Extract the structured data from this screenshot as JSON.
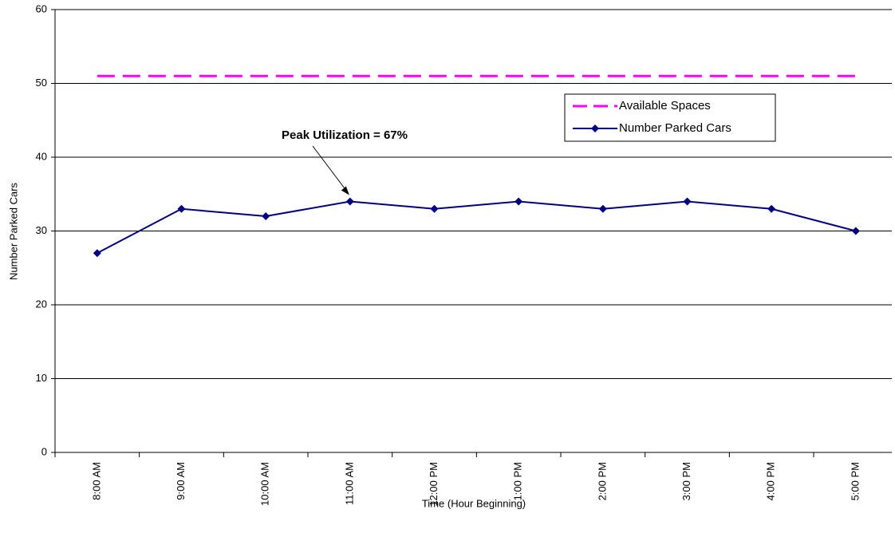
{
  "chart_data": {
    "type": "line",
    "x_label": "Time (Hour Beginning)",
    "y_label": "Number Parked Cars",
    "categories": [
      "8:00 AM",
      "9:00 AM",
      "10:00 AM",
      "11:00 AM",
      "12:00 PM",
      "1:00 PM",
      "2:00 PM",
      "3:00 PM",
      "4:00 PM",
      "5:00 PM"
    ],
    "series": [
      {
        "name": "Available Spaces",
        "color": "#ff00ff",
        "line_style": "dashed",
        "values": [
          51,
          51,
          51,
          51,
          51,
          51,
          51,
          51,
          51,
          51
        ]
      },
      {
        "name": "Number Parked Cars",
        "color": "#000080",
        "line_style": "solid",
        "marker": "diamond",
        "values": [
          27,
          33,
          32,
          34,
          33,
          34,
          33,
          34,
          33,
          30
        ]
      }
    ],
    "annotations": [
      {
        "text": "Peak Utilization = 67%"
      }
    ],
    "ylim": [
      0,
      60
    ],
    "yticks": [
      0,
      10,
      20,
      30,
      40,
      50,
      60
    ],
    "grid": true
  }
}
